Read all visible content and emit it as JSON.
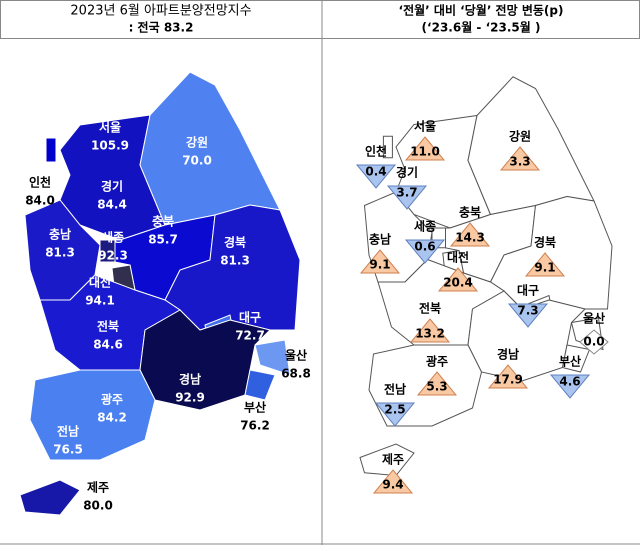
{
  "left": {
    "title": "2023년 6월 아파트분양전망지수",
    "subtitle": ": 전국 83.2",
    "regions": [
      {
        "name": "서울",
        "value": "105.9"
      },
      {
        "name": "경기",
        "value": "84.4"
      },
      {
        "name": "인천",
        "value": "84.0"
      },
      {
        "name": "강원",
        "value": "70.0"
      },
      {
        "name": "충북",
        "value": "85.7"
      },
      {
        "name": "충남",
        "value": "81.3"
      },
      {
        "name": "세종",
        "value": "92.3"
      },
      {
        "name": "대전",
        "value": "94.1"
      },
      {
        "name": "경북",
        "value": "81.3"
      },
      {
        "name": "대구",
        "value": "72.7"
      },
      {
        "name": "전북",
        "value": "84.6"
      },
      {
        "name": "울산",
        "value": "68.8"
      },
      {
        "name": "경남",
        "value": "92.9"
      },
      {
        "name": "부산",
        "value": "76.2"
      },
      {
        "name": "광주",
        "value": "84.2"
      },
      {
        "name": "전남",
        "value": "76.5"
      },
      {
        "name": "제주",
        "value": "80.0"
      }
    ]
  },
  "right": {
    "title": "‘전월’ 대비 ‘당월’ 전망 변동(p)",
    "subtitle": "(‘23.6월 - ‘23.5월 )",
    "regions": [
      {
        "name": "서울",
        "change": "11.0",
        "direction": "up"
      },
      {
        "name": "경기",
        "change": "3.7",
        "direction": "down"
      },
      {
        "name": "인천",
        "change": "0.4",
        "direction": "down"
      },
      {
        "name": "강원",
        "change": "3.3",
        "direction": "up"
      },
      {
        "name": "충북",
        "change": "14.3",
        "direction": "up"
      },
      {
        "name": "충남",
        "change": "9.1",
        "direction": "up"
      },
      {
        "name": "세종",
        "change": "0.6",
        "direction": "down"
      },
      {
        "name": "대전",
        "change": "20.4",
        "direction": "up"
      },
      {
        "name": "경북",
        "change": "9.1",
        "direction": "up"
      },
      {
        "name": "대구",
        "change": "7.3",
        "direction": "down"
      },
      {
        "name": "전북",
        "change": "13.2",
        "direction": "up"
      },
      {
        "name": "울산",
        "change": "0.0",
        "direction": "flat"
      },
      {
        "name": "경남",
        "change": "17.9",
        "direction": "up"
      },
      {
        "name": "부산",
        "change": "4.6",
        "direction": "down"
      },
      {
        "name": "광주",
        "change": "5.3",
        "direction": "up"
      },
      {
        "name": "전남",
        "change": "2.5",
        "direction": "down"
      },
      {
        "name": "제주",
        "change": "9.4",
        "direction": "up"
      }
    ]
  }
}
